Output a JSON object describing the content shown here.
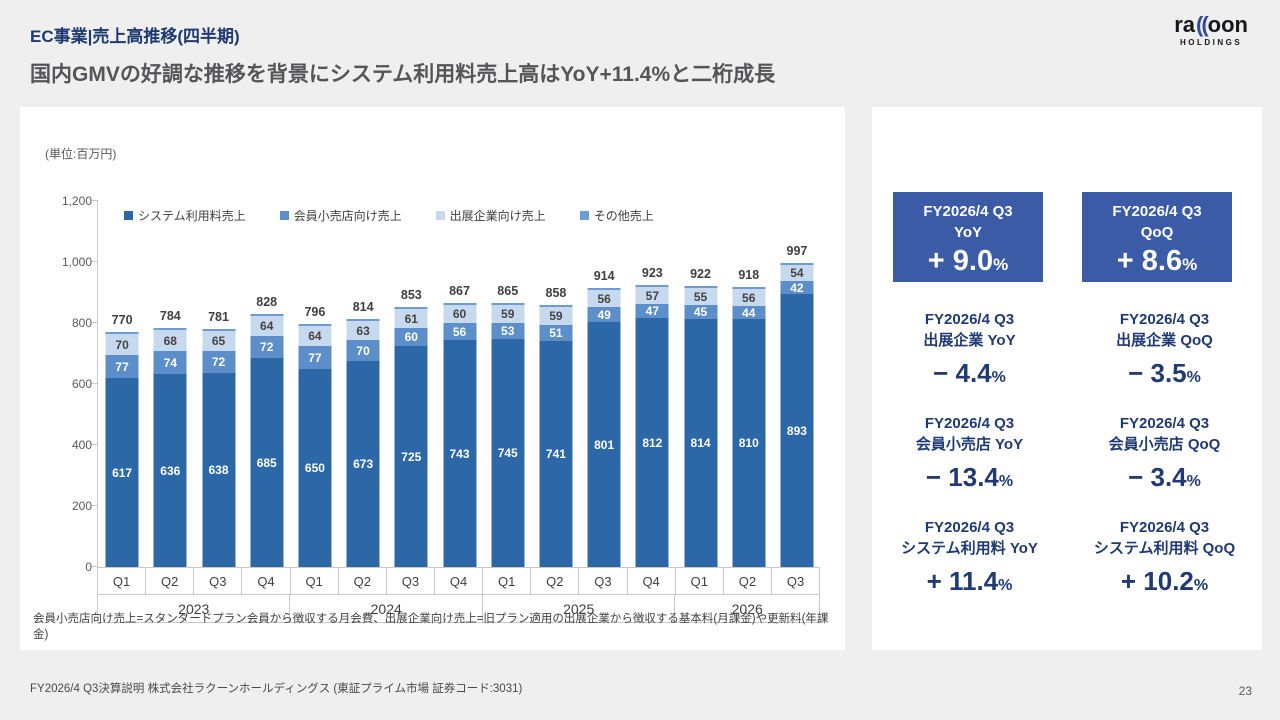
{
  "header": {
    "title": "EC事業|売上高推移(四半期)",
    "subtitle": "国内GMVの好調な推移を背景にシステム利用料売上高はYoY+11.4%と二桁成長"
  },
  "logo": {
    "pre": "ra",
    "parens": "((",
    "post": "oon",
    "sub": "HOLDINGS"
  },
  "chart_data": {
    "type": "bar",
    "stacked": true,
    "unit_label": "(単位:百万円)",
    "ylim": [
      0,
      1200
    ],
    "y_ticks": [
      {
        "label": "0",
        "value": 0
      },
      {
        "label": "200",
        "value": 200
      },
      {
        "label": "400",
        "value": 400
      },
      {
        "label": "600",
        "value": 600
      },
      {
        "label": "800",
        "value": 800
      },
      {
        "label": "1,000",
        "value": 1000
      },
      {
        "label": "1,200",
        "value": 1200
      }
    ],
    "legend": [
      {
        "label": "システム利用料売上",
        "color": "#2C68A8"
      },
      {
        "label": "会員小売店向け売上",
        "color": "#5C8EC9"
      },
      {
        "label": "出展企業向け売上",
        "color": "#C6D9EE"
      },
      {
        "label": "その他売上",
        "color": "#6F9BD4"
      }
    ],
    "years": [
      {
        "label": "2023",
        "quarters": [
          "Q1",
          "Q2",
          "Q3",
          "Q4"
        ]
      },
      {
        "label": "2024",
        "quarters": [
          "Q1",
          "Q2",
          "Q3",
          "Q4"
        ]
      },
      {
        "label": "2025",
        "quarters": [
          "Q1",
          "Q2",
          "Q3",
          "Q4"
        ]
      },
      {
        "label": "2026",
        "quarters": [
          "Q1",
          "Q2",
          "Q3"
        ]
      }
    ],
    "bars": [
      {
        "year": "2023",
        "quarter": "Q1",
        "total": 770,
        "system": 617,
        "member": 77,
        "exhibitor": 70
      },
      {
        "year": "2023",
        "quarter": "Q2",
        "total": 784,
        "system": 636,
        "member": 74,
        "exhibitor": 68
      },
      {
        "year": "2023",
        "quarter": "Q3",
        "total": 781,
        "system": 638,
        "member": 72,
        "exhibitor": 65
      },
      {
        "year": "2023",
        "quarter": "Q4",
        "total": 828,
        "system": 685,
        "member": 72,
        "exhibitor": 64
      },
      {
        "year": "2024",
        "quarter": "Q1",
        "total": 796,
        "system": 650,
        "member": 77,
        "exhibitor": 64
      },
      {
        "year": "2024",
        "quarter": "Q2",
        "total": 814,
        "system": 673,
        "member": 70,
        "exhibitor": 63
      },
      {
        "year": "2024",
        "quarter": "Q3",
        "total": 853,
        "system": 725,
        "member": 60,
        "exhibitor": 61
      },
      {
        "year": "2024",
        "quarter": "Q4",
        "total": 867,
        "system": 743,
        "member": 56,
        "exhibitor": 60
      },
      {
        "year": "2025",
        "quarter": "Q1",
        "total": 865,
        "system": 745,
        "member": 53,
        "exhibitor": 59
      },
      {
        "year": "2025",
        "quarter": "Q2",
        "total": 858,
        "system": 741,
        "member": 51,
        "exhibitor": 59
      },
      {
        "year": "2025",
        "quarter": "Q3",
        "total": 914,
        "system": 801,
        "member": 49,
        "exhibitor": 56
      },
      {
        "year": "2025",
        "quarter": "Q4",
        "total": 923,
        "system": 812,
        "member": 47,
        "exhibitor": 57
      },
      {
        "year": "2026",
        "quarter": "Q1",
        "total": 922,
        "system": 814,
        "member": 45,
        "exhibitor": 55
      },
      {
        "year": "2026",
        "quarter": "Q2",
        "total": 918,
        "system": 810,
        "member": 44,
        "exhibitor": 56
      },
      {
        "year": "2026",
        "quarter": "Q3",
        "total": 997,
        "system": 893,
        "member": 42,
        "exhibitor": 54
      }
    ]
  },
  "kpi_boxes": [
    {
      "line1": "FY2026/4 Q3",
      "line2": "YoY",
      "value": "+ 9.0",
      "suffix": "%"
    },
    {
      "line1": "FY2026/4 Q3",
      "line2": "QoQ",
      "value": "+ 8.6",
      "suffix": "%"
    }
  ],
  "metrics": [
    {
      "line1": "FY2026/4 Q3",
      "line2": "出展企業 YoY",
      "value": "− 4.4",
      "suffix": "%"
    },
    {
      "line1": "FY2026/4 Q3",
      "line2": "出展企業 QoQ",
      "value": "− 3.5",
      "suffix": "%"
    },
    {
      "line1": "FY2026/4 Q3",
      "line2": "会員小売店 YoY",
      "value": "− 13.4",
      "suffix": "%"
    },
    {
      "line1": "FY2026/4 Q3",
      "line2": "会員小売店 QoQ",
      "value": "− 3.4",
      "suffix": "%"
    },
    {
      "line1": "FY2026/4 Q3",
      "line2": "システム利用料 YoY",
      "value": "+ 11.4",
      "suffix": "%"
    },
    {
      "line1": "FY2026/4 Q3",
      "line2": "システム利用料 QoQ",
      "value": "+ 10.2",
      "suffix": "%"
    }
  ],
  "footnote": "会員小売店向け売上=スタンダードプラン会員から徴収する月会費、出展企業向け売上=旧プラン適用の出展企業から徴収する基本料(月課金)や更新料(年課金)",
  "footer": {
    "left": "FY2026/4 Q3決算説明 株式会社ラクーンホールディングス (東証プライム市場 証券コード:3031)",
    "page": "23"
  }
}
